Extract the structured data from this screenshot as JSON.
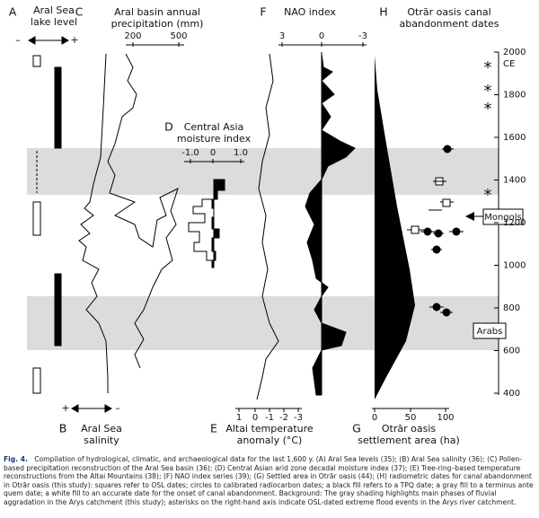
{
  "figure": {
    "panels": {
      "A": {
        "letter": "A",
        "title": [
          "Aral Sea",
          "lake level"
        ],
        "minus": "–",
        "plus": "+"
      },
      "B": {
        "letter": "B",
        "title": [
          "Aral Sea",
          "salinity"
        ],
        "minus": "–",
        "plus": "+"
      },
      "C": {
        "letter": "C",
        "title": [
          "Aral basin annual",
          "precipitation (mm)"
        ],
        "ticks": [
          "200",
          "500"
        ]
      },
      "D": {
        "letter": "D",
        "title": [
          "Central Asia",
          "moisture index"
        ],
        "ticks": [
          "-1.0",
          "0",
          "1.0"
        ]
      },
      "E": {
        "letter": "E",
        "title": [
          "Altai temperature",
          "anomaly (°C)"
        ],
        "ticks": [
          "1",
          "0",
          "-1",
          "-2",
          "-3"
        ]
      },
      "F": {
        "letter": "F",
        "title": [
          "NAO index"
        ],
        "ticks": [
          "3",
          "0",
          "-3"
        ]
      },
      "G": {
        "letter": "G",
        "title": [
          "Otrār oasis",
          "settlement area (ha)"
        ],
        "ticks": [
          "0",
          "50",
          "100"
        ]
      },
      "H": {
        "letter": "H",
        "title": [
          "Otrār oasis canal",
          "abandonment dates"
        ]
      }
    },
    "year_axis": {
      "ticks": [
        2000,
        1800,
        1600,
        1400,
        1200,
        1000,
        800,
        600,
        400
      ],
      "unit": "CE"
    },
    "annotations": [
      "Mongols",
      "Arabs"
    ],
    "asterisk": "*",
    "caption": {
      "label": "Fig. 4.",
      "text": "Compilation of hydrological, climatic, and archaeological data for the last 1,600 y. (A) Aral Sea levels (35); (B) Aral Sea salinity (36); (C) Pollen-based precipitation reconstruction of the Aral Sea basin (36); (D) Central Asian arid zone decadal moisture index (37); (E) Tree-ring–based temperature reconstructions from the Altai Mountains (38); (F) NAO index series (39); (G) Settled area in Otrār oasis (44); (H) radiometric dates for canal abandonment in Otrār oasis (this study): squares refer to OSL dates; circles to calibrated radiocarbon dates; a black fill refers to a TPQ date; a gray fill to a terminus ante quem date; a white fill to an accurate date for the onset of canal abandonment. Background: The gray shading highlights main phases of fluvial aggradation in the Arys catchment (this study); asterisks on the right-hand axis indicate OSL-dated extreme flood events in the Arys river catchment."
    }
  }
}
